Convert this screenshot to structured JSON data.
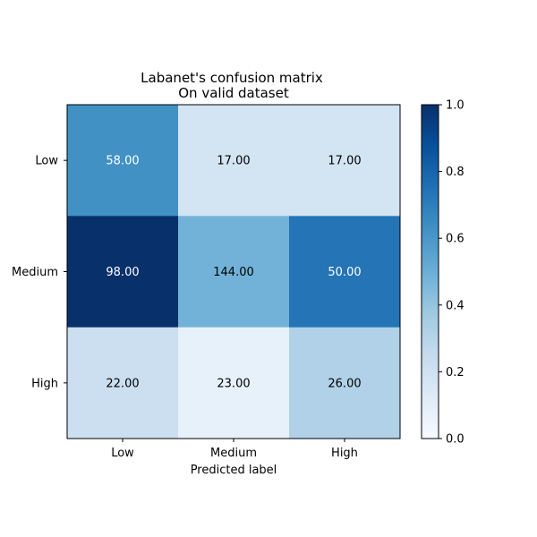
{
  "chart_data": {
    "type": "heatmap",
    "title": "Labanet's confusion matrix",
    "subtitle": "On valid dataset",
    "xlabel": "Predicted label",
    "ylabel": "",
    "x_categories": [
      "Low",
      "Medium",
      "High"
    ],
    "y_categories": [
      "Low",
      "Medium",
      "High"
    ],
    "values": [
      [
        58.0,
        17.0,
        17.0
      ],
      [
        98.0,
        144.0,
        50.0
      ],
      [
        22.0,
        23.0,
        26.0
      ]
    ],
    "cell_labels": [
      [
        "58.00",
        "17.00",
        "17.00"
      ],
      [
        "98.00",
        "144.00",
        "50.00"
      ],
      [
        "22.00",
        "23.00",
        "26.00"
      ]
    ],
    "color_fractions": [
      [
        0.63,
        0.18,
        0.18
      ],
      [
        1.0,
        0.48,
        0.74
      ],
      [
        0.22,
        0.08,
        0.32
      ]
    ],
    "colormap": "Blues",
    "colorbar": {
      "range": [
        0.0,
        1.0
      ],
      "ticks": [
        "0.0",
        "0.2",
        "0.4",
        "0.6",
        "0.8",
        "1.0"
      ]
    },
    "grid": false
  }
}
